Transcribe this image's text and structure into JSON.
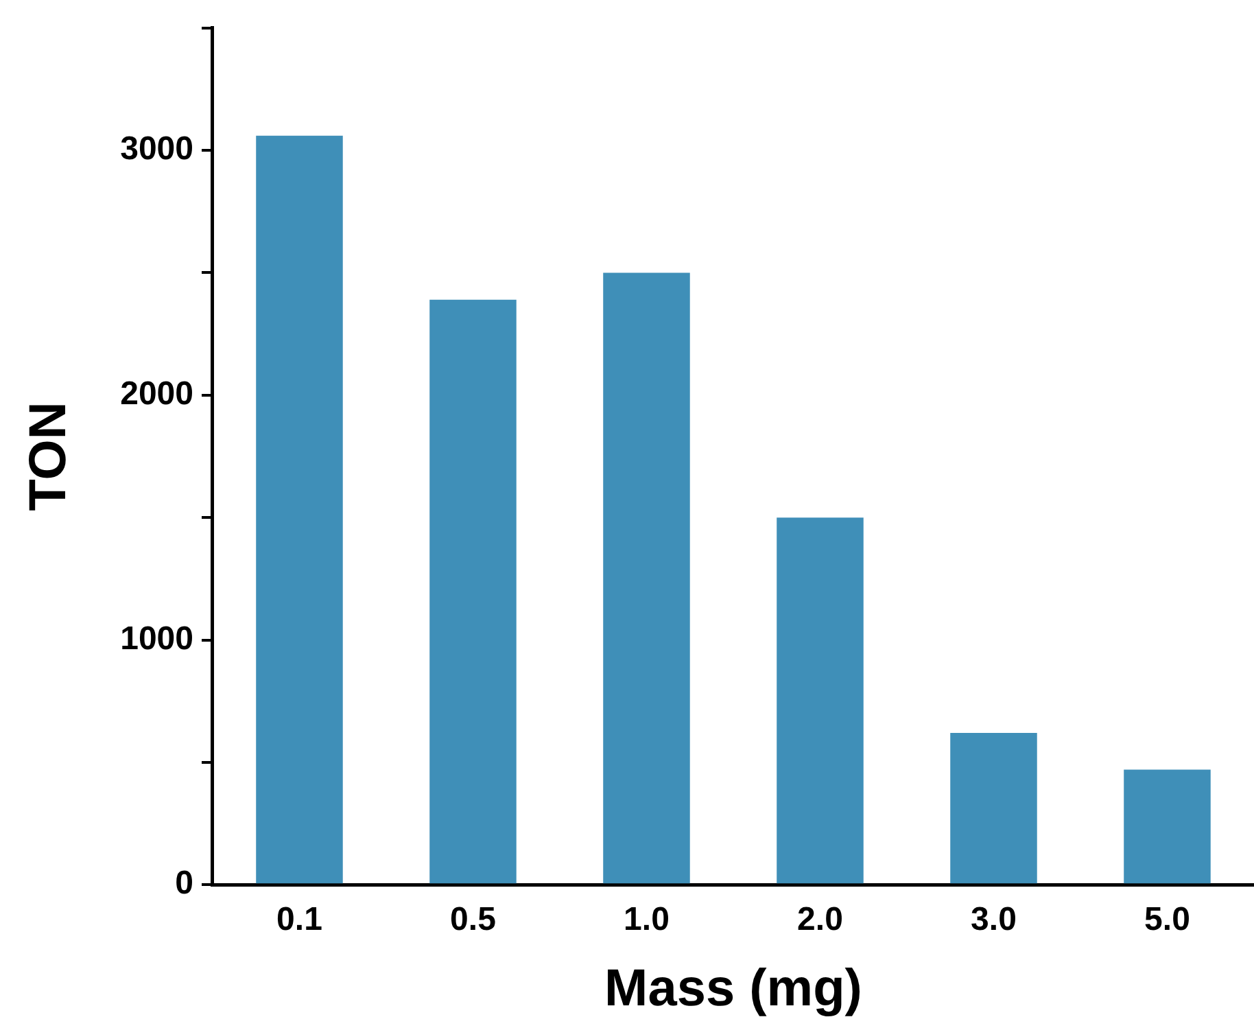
{
  "chart_data": {
    "type": "bar",
    "xlabel": "Mass (mg)",
    "ylabel": "TON",
    "categories": [
      "0.1",
      "0.5",
      "1.0",
      "2.0",
      "3.0",
      "5.0"
    ],
    "values": [
      3060,
      2390,
      2500,
      1500,
      620,
      470
    ],
    "color": "#3f8fb8",
    "ylim": [
      0,
      3500
    ],
    "yticks": [
      0,
      {
        "value": 500,
        "label": null
      },
      1000,
      {
        "value": 1500,
        "label": null
      },
      2000,
      {
        "value": 2500,
        "label": null
      },
      3000,
      {
        "value": 3500,
        "label": null
      }
    ],
    "grid": false,
    "legend": false
  }
}
